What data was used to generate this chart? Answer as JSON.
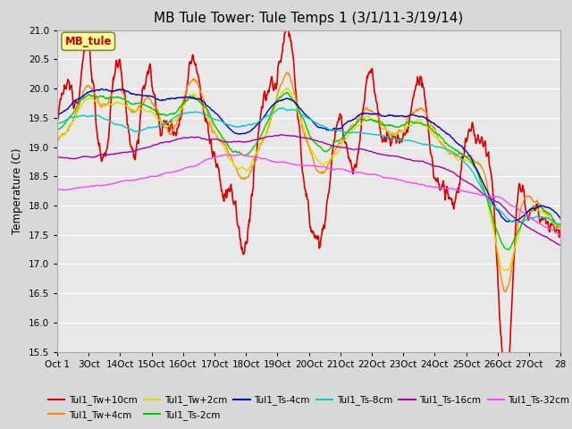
{
  "title": "MB Tule Tower: Tule Temps 1 (3/1/11-3/19/14)",
  "ylabel": "Temperature (C)",
  "ylim": [
    15.5,
    21.0
  ],
  "yticks": [
    15.5,
    16.0,
    16.5,
    17.0,
    17.5,
    18.0,
    18.5,
    19.0,
    19.5,
    20.0,
    20.5,
    21.0
  ],
  "xtick_labels": [
    "Oct 1",
    "3Oct",
    "14Oct",
    "15Oct",
    "16Oct",
    "17Oct",
    "18Oct",
    "19Oct",
    "20Oct",
    "21Oct",
    "22Oct",
    "23Oct",
    "24Oct",
    "25Oct",
    "26Oct",
    "27Oct",
    "28"
  ],
  "n_points": 1000,
  "legend_box_text": "MB_tule",
  "legend_box_color": "#ffff99",
  "legend_box_border": "#888844",
  "series": [
    {
      "label": "Tul1_Tw+10cm",
      "color": "#dd0000",
      "lw": 1.2
    },
    {
      "label": "Tul1_Tw+4cm",
      "color": "#ff8800",
      "lw": 1.0
    },
    {
      "label": "Tul1_Tw+2cm",
      "color": "#dddd00",
      "lw": 1.0
    },
    {
      "label": "Tul1_Ts-2cm",
      "color": "#00cc00",
      "lw": 1.0
    },
    {
      "label": "Tul1_Ts-4cm",
      "color": "#0000cc",
      "lw": 1.0
    },
    {
      "label": "Tul1_Ts-8cm",
      "color": "#00cccc",
      "lw": 1.0
    },
    {
      "label": "Tul1_Ts-16cm",
      "color": "#aa00aa",
      "lw": 1.0
    },
    {
      "label": "Tul1_Ts-32cm",
      "color": "#ff44ff",
      "lw": 1.0
    }
  ],
  "bg_color": "#d8d8d8",
  "plot_bg_color": "#e8e8e8",
  "grid_color": "#ffffff",
  "title_fontsize": 11,
  "legend_ncol": 6
}
